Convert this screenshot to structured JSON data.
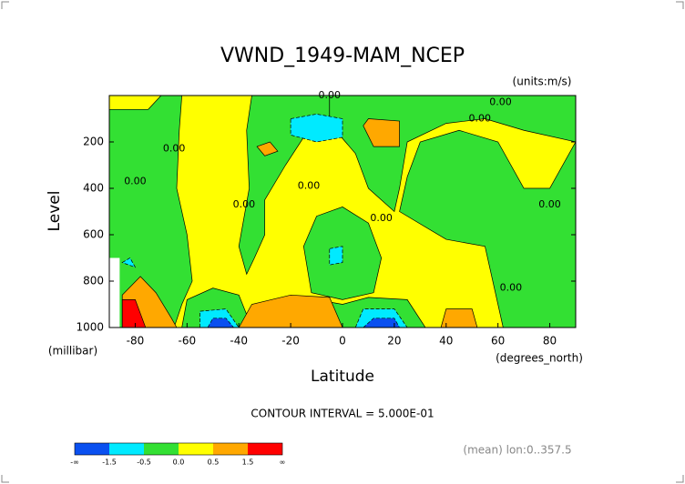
{
  "chart_data": {
    "type": "contour",
    "title": "VWND_1949-MAM_NCEP",
    "units_label": "(units:m/s)",
    "x_label": "Latitude",
    "x_units": "(degrees_north)",
    "y_label": "Level",
    "y_units": "(millibar)",
    "xlim": [
      -90,
      90
    ],
    "xticks": [
      -80,
      -60,
      -40,
      -20,
      0,
      20,
      40,
      60,
      80
    ],
    "ylim": [
      1000,
      0
    ],
    "yticks": [
      200,
      400,
      600,
      800,
      1000
    ],
    "contour_interval_label": "CONTOUR INTERVAL = 5.000E-01",
    "note": "(mean) lon:0..357.5",
    "colorbar": {
      "colors": [
        "#0a50f0",
        "#00eaff",
        "#33e033",
        "#ffff00",
        "#ffa800",
        "#ff0000"
      ],
      "labels": [
        "-∞",
        "-1.5",
        "-0.5",
        "0.0",
        "0.5",
        "1.5",
        "∞"
      ]
    },
    "background_level": 3,
    "missing_color": "#ffffff",
    "missing_region": [
      [
        -90,
        700
      ],
      [
        -86,
        700
      ],
      [
        -86,
        1000
      ],
      [
        -90,
        1000
      ]
    ],
    "regions": [
      {
        "level": 2,
        "points": [
          [
            -90,
            60
          ],
          [
            -75,
            60
          ],
          [
            -70,
            0
          ],
          [
            -62,
            0
          ],
          [
            -63,
            150
          ],
          [
            -64,
            400
          ],
          [
            -60,
            600
          ],
          [
            -58,
            800
          ],
          [
            -62,
            900
          ],
          [
            -65,
            1000
          ],
          [
            -90,
            1000
          ]
        ]
      },
      {
        "level": 2,
        "points": [
          [
            -35,
            0
          ],
          [
            -5,
            0
          ],
          [
            -5,
            120
          ],
          [
            -15,
            180
          ],
          [
            -22,
            300
          ],
          [
            -30,
            450
          ],
          [
            -30,
            600
          ],
          [
            -34,
            700
          ],
          [
            -37,
            770
          ],
          [
            -40,
            650
          ],
          [
            -36,
            400
          ],
          [
            -37,
            150
          ]
        ]
      },
      {
        "level": 2,
        "points": [
          [
            -62,
            1000
          ],
          [
            -60,
            880
          ],
          [
            -50,
            830
          ],
          [
            -40,
            860
          ],
          [
            -35,
            1000
          ]
        ]
      },
      {
        "level": 2,
        "points": [
          [
            -15,
            650
          ],
          [
            -10,
            520
          ],
          [
            0,
            480
          ],
          [
            10,
            550
          ],
          [
            15,
            700
          ],
          [
            12,
            850
          ],
          [
            0,
            880
          ],
          [
            -12,
            850
          ]
        ]
      },
      {
        "level": 2,
        "points": [
          [
            2,
            0
          ],
          [
            90,
            0
          ],
          [
            90,
            200
          ],
          [
            70,
            150
          ],
          [
            55,
            100
          ],
          [
            40,
            120
          ],
          [
            25,
            200
          ],
          [
            22,
            400
          ],
          [
            20,
            500
          ],
          [
            10,
            400
          ],
          [
            5,
            250
          ],
          [
            -5,
            120
          ],
          [
            -5,
            0
          ]
        ]
      },
      {
        "level": 2,
        "points": [
          [
            22,
            500
          ],
          [
            40,
            620
          ],
          [
            55,
            650
          ],
          [
            62,
            1000
          ],
          [
            90,
            1000
          ],
          [
            90,
            200
          ],
          [
            80,
            400
          ],
          [
            70,
            400
          ],
          [
            60,
            200
          ],
          [
            45,
            150
          ],
          [
            30,
            200
          ],
          [
            25,
            350
          ]
        ]
      },
      {
        "level": 2,
        "points": [
          [
            -32,
            1000
          ],
          [
            -28,
            920
          ],
          [
            -15,
            870
          ],
          [
            0,
            900
          ],
          [
            10,
            870
          ],
          [
            25,
            880
          ],
          [
            32,
            1000
          ]
        ]
      },
      {
        "level": 1,
        "points": [
          [
            -20,
            100
          ],
          [
            -10,
            80
          ],
          [
            0,
            100
          ],
          [
            0,
            180
          ],
          [
            -10,
            200
          ],
          [
            -20,
            170
          ]
        ]
      },
      {
        "level": 1,
        "points": [
          [
            -55,
            1000
          ],
          [
            -55,
            930
          ],
          [
            -45,
            920
          ],
          [
            -40,
            1000
          ]
        ]
      },
      {
        "level": 1,
        "points": [
          [
            -5,
            660
          ],
          [
            0,
            650
          ],
          [
            0,
            720
          ],
          [
            -5,
            730
          ]
        ]
      },
      {
        "level": 1,
        "points": [
          [
            5,
            1000
          ],
          [
            8,
            920
          ],
          [
            20,
            920
          ],
          [
            25,
            1000
          ]
        ]
      },
      {
        "level": 1,
        "points": [
          [
            -85,
            720
          ],
          [
            -82,
            700
          ],
          [
            -80,
            740
          ]
        ]
      },
      {
        "level": 0,
        "points": [
          [
            -52,
            1000
          ],
          [
            -50,
            960
          ],
          [
            -45,
            960
          ],
          [
            -42,
            1000
          ]
        ]
      },
      {
        "level": 0,
        "points": [
          [
            8,
            1000
          ],
          [
            12,
            960
          ],
          [
            20,
            960
          ],
          [
            22,
            1000
          ]
        ]
      },
      {
        "level": 4,
        "points": [
          [
            -33,
            220
          ],
          [
            -28,
            200
          ],
          [
            -25,
            240
          ],
          [
            -30,
            260
          ]
        ]
      },
      {
        "level": 4,
        "points": [
          [
            8,
            130
          ],
          [
            10,
            100
          ],
          [
            22,
            110
          ],
          [
            22,
            220
          ],
          [
            12,
            220
          ]
        ]
      },
      {
        "level": 4,
        "points": [
          [
            -85,
            1000
          ],
          [
            -85,
            860
          ],
          [
            -78,
            780
          ],
          [
            -72,
            850
          ],
          [
            -66,
            960
          ],
          [
            -64,
            1000
          ]
        ]
      },
      {
        "level": 4,
        "points": [
          [
            -40,
            1000
          ],
          [
            -35,
            900
          ],
          [
            -20,
            860
          ],
          [
            -5,
            870
          ],
          [
            0,
            1000
          ]
        ]
      },
      {
        "level": 4,
        "points": [
          [
            38,
            1000
          ],
          [
            40,
            920
          ],
          [
            50,
            920
          ],
          [
            52,
            1000
          ]
        ]
      },
      {
        "level": 5,
        "points": [
          [
            -85,
            1000
          ],
          [
            -85,
            880
          ],
          [
            -80,
            880
          ],
          [
            -76,
            1000
          ]
        ]
      }
    ],
    "contour_labels": [
      {
        "text": "0.00",
        "lat": -5,
        "level": 0
      },
      {
        "text": "0.00",
        "lat": 61,
        "level": 30
      },
      {
        "text": "0.00",
        "lat": 53,
        "level": 100
      },
      {
        "text": "0.00",
        "lat": -65,
        "level": 230
      },
      {
        "text": "0.00",
        "lat": -80,
        "level": 370
      },
      {
        "text": "0.00",
        "lat": -38,
        "level": 470
      },
      {
        "text": "0.00",
        "lat": -13,
        "level": 390
      },
      {
        "text": "0.00",
        "lat": 15,
        "level": 530
      },
      {
        "text": "0.00",
        "lat": 65,
        "level": 830
      },
      {
        "text": "0.00",
        "lat": 80,
        "level": 470
      }
    ]
  }
}
